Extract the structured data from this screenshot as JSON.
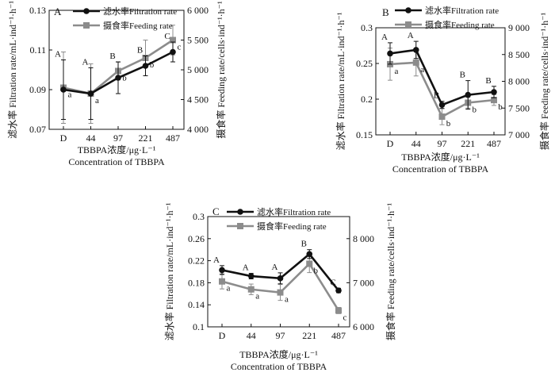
{
  "figure": {
    "legend": {
      "filtration": "滤水率Filtration rate",
      "feeding": "摄食率Feeding rate"
    },
    "colors": {
      "filtration": "#111111",
      "feeding": "#8c8c8c"
    }
  },
  "chart_data": [
    {
      "type": "line",
      "panel_label": "A",
      "categories": [
        "D",
        "44",
        "97",
        "221",
        "487"
      ],
      "xlabel": "TBBPA浓度/μg·L⁻¹",
      "xlabel2": "Concentration of TBBPA",
      "ylabel_left": "滤水率 Filtration rate/mL·ind⁻¹·h⁻¹",
      "ylabel_right": "摄食率 Feeding rate/cells·ind⁻¹·h⁻¹",
      "left_ylim": [
        0.07,
        0.13
      ],
      "left_ticks": [
        "0.07",
        "0.09",
        "0.11",
        "0.13"
      ],
      "right_ylim": [
        4000,
        6000
      ],
      "right_ticks": [
        "4 000",
        "4 500",
        "5 000",
        "5 500",
        "6 000"
      ],
      "series": [
        {
          "name": "滤水率Filtration rate",
          "axis": "left",
          "values": [
            0.09,
            0.088,
            0.096,
            0.102,
            0.109
          ],
          "errors": [
            0.015,
            0.013,
            0.008,
            0.005,
            0.005
          ],
          "letters": [
            "A",
            "A",
            "B",
            "B",
            "C"
          ]
        },
        {
          "name": "摄食率Feeding rate",
          "axis": "right",
          "values": [
            4700,
            4600,
            4980,
            5200,
            5500
          ],
          "errors": [
            600,
            500,
            150,
            300,
            250
          ],
          "letters": [
            "a",
            "a",
            "b",
            "b",
            "c"
          ]
        }
      ]
    },
    {
      "type": "line",
      "panel_label": "B",
      "categories": [
        "D",
        "44",
        "97",
        "221",
        "487"
      ],
      "xlabel": "TBBPA浓度/μg·L⁻¹",
      "xlabel2": "Concentration of TBBPA",
      "ylabel_left": "滤水率 Filtration rate/mL·ind⁻¹·h⁻¹",
      "ylabel_right": "摄食率 Feeding rate/cells·ind⁻¹·h⁻¹",
      "left_ylim": [
        0.15,
        0.3
      ],
      "left_ticks": [
        "0.15",
        "0.2",
        "0.25",
        "0.3"
      ],
      "right_ylim": [
        7000,
        9000
      ],
      "right_ticks": [
        "7 000",
        "7 500",
        "8 000",
        "8 500",
        "9 000"
      ],
      "series": [
        {
          "name": "滤水率Filtration rate",
          "axis": "left",
          "values": [
            0.264,
            0.269,
            0.192,
            0.206,
            0.21
          ],
          "errors": [
            0.015,
            0.012,
            0.005,
            0.02,
            0.008
          ],
          "letters": [
            "A",
            "A",
            "B",
            "B",
            "B"
          ]
        },
        {
          "name": "摄食率Feeding rate",
          "axis": "right",
          "values": [
            8320,
            8350,
            7340,
            7600,
            7650
          ],
          "errors": [
            300,
            250,
            150,
            100,
            100
          ],
          "letters": [
            "a",
            "a",
            "b",
            "b",
            "b"
          ]
        }
      ]
    },
    {
      "type": "line",
      "panel_label": "C",
      "categories": [
        "D",
        "44",
        "97",
        "221",
        "487"
      ],
      "xlabel": "TBBPA浓度/μg·L⁻¹",
      "xlabel2": "Concentration of TBBPA",
      "ylabel_left": "滤水率 Filtration rate/mL·ind⁻¹·h⁻¹",
      "ylabel_right": "摄食率 Feeding rate/cells·ind⁻¹·h⁻¹",
      "left_ylim": [
        0.1,
        0.3
      ],
      "left_ticks": [
        "0.1",
        "0.14",
        "0.18",
        "0.22",
        "0.26",
        "0.3"
      ],
      "right_ylim": [
        6000,
        8500
      ],
      "right_ticks": [
        "6 000",
        "7 000",
        "8 000"
      ],
      "series": [
        {
          "name": "滤水率Filtration rate",
          "axis": "left",
          "values": [
            0.203,
            0.192,
            0.188,
            0.232,
            0.166
          ],
          "errors": [
            0.008,
            0.005,
            0.01,
            0.008,
            0.004
          ],
          "letters": [
            "A",
            "A",
            "A",
            "B",
            "C"
          ]
        },
        {
          "name": "摄食率Feeding rate",
          "axis": "right",
          "values": [
            7030,
            6850,
            6780,
            7430,
            6370
          ],
          "errors": [
            170,
            120,
            180,
            200,
            70
          ],
          "letters": [
            "a",
            "a",
            "a",
            "b",
            "c"
          ]
        }
      ]
    }
  ]
}
